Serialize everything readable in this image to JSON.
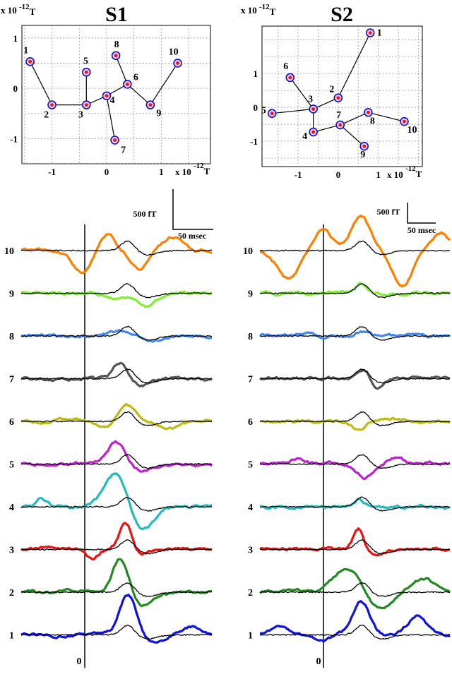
{
  "chart_data": [
    {
      "id": "S1",
      "type": "scatter",
      "title": "S1",
      "xlabel": "x 10",
      "xlabel_exp": "-12",
      "xlabel_unit": "T",
      "ylabel": "x 10",
      "ylabel_exp": "-12",
      "ylabel_unit": "T",
      "xlim": [
        -1.55,
        1.9
      ],
      "ylim": [
        -1.5,
        1.25
      ],
      "x_ticks": [
        -1,
        0,
        1
      ],
      "y_ticks": [
        1,
        0,
        -1
      ],
      "grid": true,
      "colors": {
        "ring": "#1010cc",
        "center": "#ee1111",
        "fill": "#f4c8e4"
      },
      "points": [
        {
          "label": "1",
          "x": -1.4,
          "y": 0.53
        },
        {
          "label": "2",
          "x": -1.0,
          "y": -0.33
        },
        {
          "label": "3",
          "x": -0.37,
          "y": -0.33
        },
        {
          "label": "4",
          "x": 0.0,
          "y": -0.15
        },
        {
          "label": "5",
          "x": -0.37,
          "y": 0.32
        },
        {
          "label": "6",
          "x": 0.38,
          "y": 0.08
        },
        {
          "label": "7",
          "x": 0.15,
          "y": -1.03
        },
        {
          "label": "8",
          "x": 0.17,
          "y": 0.65
        },
        {
          "label": "9",
          "x": 0.8,
          "y": -0.33
        },
        {
          "label": "10",
          "x": 1.3,
          "y": 0.5
        }
      ],
      "edges": [
        [
          1,
          2
        ],
        [
          2,
          3
        ],
        [
          3,
          5
        ],
        [
          3,
          4
        ],
        [
          4,
          7
        ],
        [
          4,
          6
        ],
        [
          6,
          8
        ],
        [
          6,
          9
        ],
        [
          9,
          10
        ]
      ]
    },
    {
      "id": "S2",
      "type": "scatter",
      "title": "S2",
      "xlabel": "x 10",
      "xlabel_exp": "-12",
      "xlabel_unit": "T",
      "ylabel": "x 10",
      "ylabel_exp": "-12",
      "ylabel_unit": "T",
      "xlim": [
        -1.9,
        2.1
      ],
      "ylim": [
        -1.75,
        2.4
      ],
      "x_ticks": [
        -1,
        0,
        1
      ],
      "y_ticks": [
        1,
        0,
        -1
      ],
      "grid": true,
      "colors": {
        "ring": "#1010cc",
        "center": "#ee1111",
        "fill": "#f4c8e4"
      },
      "points": [
        {
          "label": "1",
          "x": 0.8,
          "y": 2.2
        },
        {
          "label": "2",
          "x": 0.0,
          "y": 0.28
        },
        {
          "label": "3",
          "x": -0.62,
          "y": -0.05
        },
        {
          "label": "4",
          "x": -0.62,
          "y": -0.73
        },
        {
          "label": "5",
          "x": -1.65,
          "y": -0.18
        },
        {
          "label": "6",
          "x": -1.2,
          "y": 0.88
        },
        {
          "label": "7",
          "x": 0.05,
          "y": -0.52
        },
        {
          "label": "8",
          "x": 0.75,
          "y": -0.15
        },
        {
          "label": "9",
          "x": 0.65,
          "y": -1.15
        },
        {
          "label": "10",
          "x": 1.65,
          "y": -0.42
        }
      ],
      "edges": [
        [
          1,
          2
        ],
        [
          2,
          3
        ],
        [
          3,
          6
        ],
        [
          3,
          5
        ],
        [
          3,
          4
        ],
        [
          4,
          7
        ],
        [
          7,
          8
        ],
        [
          7,
          9
        ],
        [
          8,
          10
        ]
      ]
    },
    {
      "id": "S1-traces",
      "type": "line",
      "scalebar": {
        "amp_label": "500 fT",
        "time_label": "50 msec"
      },
      "zero_label": "0",
      "channels": [
        {
          "label": "10",
          "color": "#ff8000"
        },
        {
          "label": "9",
          "color": "#80ee33"
        },
        {
          "label": "8",
          "color": "#4488ee"
        },
        {
          "label": "7",
          "color": "#555555"
        },
        {
          "label": "6",
          "color": "#bbbb11"
        },
        {
          "label": "5",
          "color": "#bb22cc"
        },
        {
          "label": "4",
          "color": "#22bbbb"
        },
        {
          "label": "3",
          "color": "#ee1111"
        },
        {
          "label": "2",
          "color": "#228822"
        },
        {
          "label": "1",
          "color": "#1111dd"
        }
      ]
    },
    {
      "id": "S2-traces",
      "type": "line",
      "scalebar": {
        "amp_label": "500 fT",
        "time_label": "50 msec"
      },
      "zero_label": "0",
      "channels": [
        {
          "label": "10",
          "color": "#ff8000"
        },
        {
          "label": "9",
          "color": "#80ee33"
        },
        {
          "label": "8",
          "color": "#4488ee"
        },
        {
          "label": "7",
          "color": "#555555"
        },
        {
          "label": "6",
          "color": "#bbbb11"
        },
        {
          "label": "5",
          "color": "#bb22cc"
        },
        {
          "label": "4",
          "color": "#22bbbb"
        },
        {
          "label": "3",
          "color": "#ee1111"
        },
        {
          "label": "2",
          "color": "#228822"
        },
        {
          "label": "1",
          "color": "#1111dd"
        }
      ]
    }
  ]
}
